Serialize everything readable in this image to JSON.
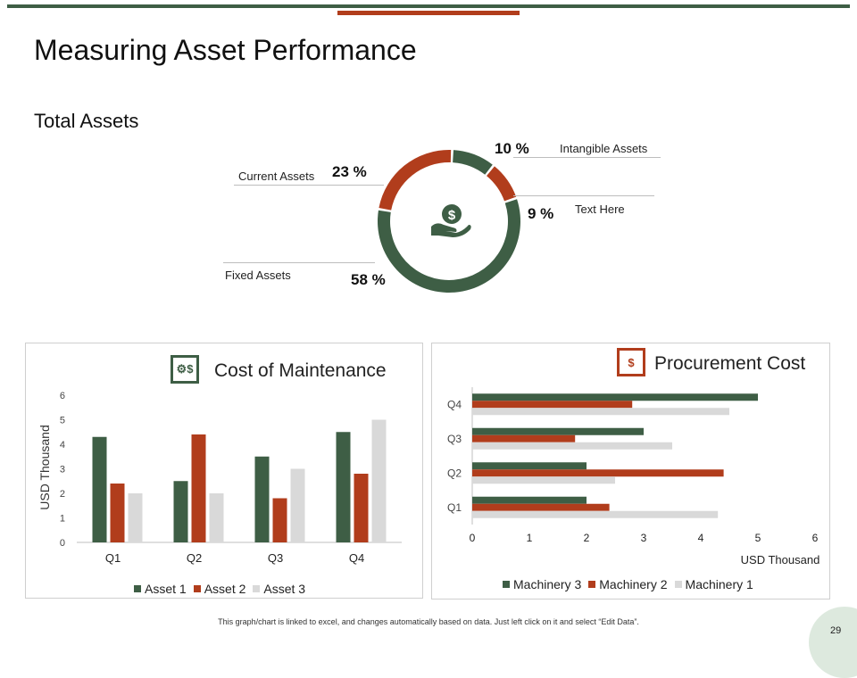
{
  "title": "Measuring Asset Performance",
  "section_title": "Total Assets",
  "footer_note": "This graph/chart is linked to excel, and changes automatically based on data. Just left click on it and select “Edit Data”.",
  "page_number": "29",
  "colors": {
    "green": "#3e5e45",
    "red": "#b13d1c",
    "gray": "#d9d9d9"
  },
  "donut": {
    "center_icon": "dollar-hand-icon",
    "segments": [
      {
        "label": "Intangible Assets",
        "pct_text": "10 %",
        "value": 10,
        "color": "#3e5e45"
      },
      {
        "label": "Text Here",
        "pct_text": "9 %",
        "value": 9,
        "color": "#b13d1c"
      },
      {
        "label": "Fixed Assets",
        "pct_text": "58 %",
        "value": 58,
        "color": "#3e5e45"
      },
      {
        "label": "Current Assets",
        "pct_text": "23 %",
        "value": 23,
        "color": "#b13d1c"
      }
    ]
  },
  "maintenance": {
    "title": "Cost of Maintenance",
    "icon": "gear-dollar-icon"
  },
  "procurement": {
    "title": "Procurement Cost",
    "icon": "money-hand-icon"
  },
  "chart_data": [
    {
      "type": "bar",
      "title": "Cost of Maintenance",
      "categories": [
        "Q1",
        "Q2",
        "Q3",
        "Q4"
      ],
      "series": [
        {
          "name": "Asset 1",
          "values": [
            4.3,
            2.5,
            3.5,
            4.5
          ],
          "color": "#3e5e45"
        },
        {
          "name": "Asset 2",
          "values": [
            2.4,
            4.4,
            1.8,
            2.8
          ],
          "color": "#b13d1c"
        },
        {
          "name": "Asset 3",
          "values": [
            2.0,
            2.0,
            3.0,
            5.0
          ],
          "color": "#d9d9d9"
        }
      ],
      "ylabel": "USD Thousand",
      "xlabel": "",
      "ylim": [
        0,
        6
      ],
      "yticks": [
        "0",
        "1",
        "2",
        "3",
        "4",
        "5",
        "6"
      ],
      "legend": "bottom"
    },
    {
      "type": "bar",
      "orientation": "horizontal",
      "title": "Procurement Cost",
      "categories": [
        "Q1",
        "Q2",
        "Q3",
        "Q4"
      ],
      "series": [
        {
          "name": "Machinery 3",
          "values": [
            2.0,
            2.0,
            3.0,
            5.0
          ],
          "color": "#3e5e45"
        },
        {
          "name": "Machinery 2",
          "values": [
            2.4,
            4.4,
            1.8,
            2.8
          ],
          "color": "#b13d1c"
        },
        {
          "name": "Machinery 1",
          "values": [
            4.3,
            2.5,
            3.5,
            4.5
          ],
          "color": "#d9d9d9"
        }
      ],
      "xlabel": "USD Thousand",
      "ylabel": "",
      "xlim": [
        0,
        6
      ],
      "xticks": [
        "0",
        "1",
        "2",
        "3",
        "4",
        "5",
        "6"
      ],
      "legend": "bottom"
    }
  ]
}
